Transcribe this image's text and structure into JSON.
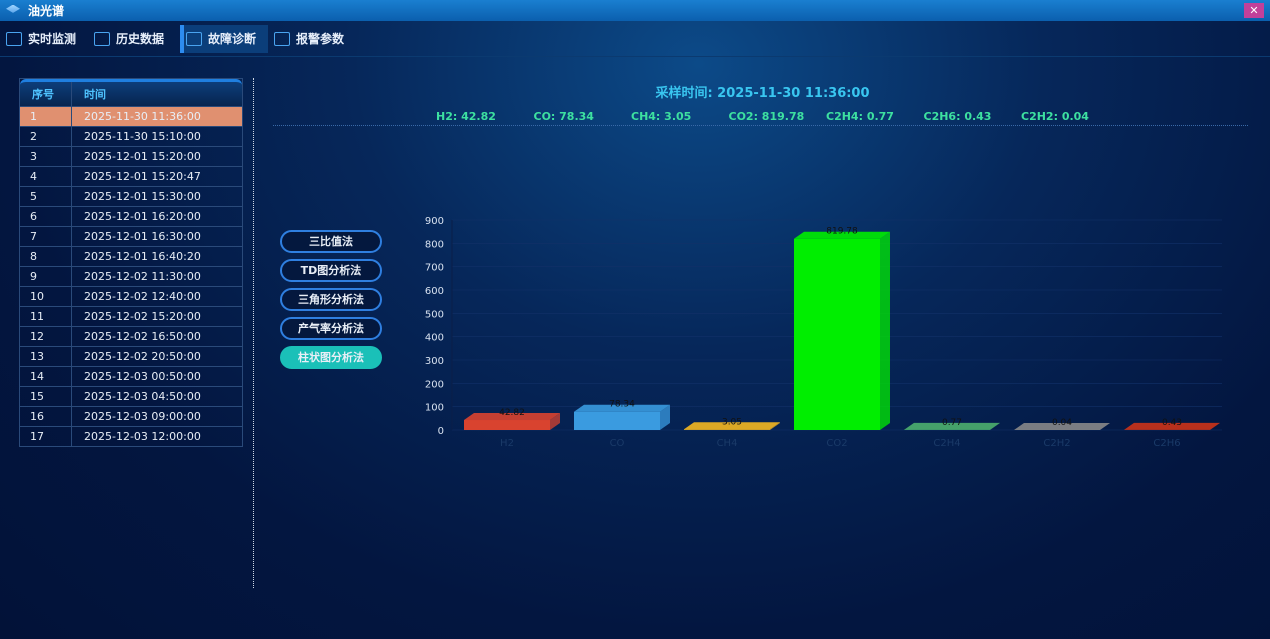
{
  "window": {
    "title": "油光谱",
    "close_icon": "close-icon"
  },
  "nav": [
    {
      "label": "实时监测",
      "icon": "monitor-icon"
    },
    {
      "label": "历史数据",
      "icon": "chart-icon"
    },
    {
      "label": "故障诊断",
      "icon": "diagnosis-icon",
      "active": true
    },
    {
      "label": "报警参数",
      "icon": "user-settings-icon"
    }
  ],
  "table": {
    "headers": [
      "序号",
      "时间"
    ],
    "selected": 0,
    "rows": [
      [
        "1",
        "2025-11-30 11:36:00"
      ],
      [
        "2",
        "2025-11-30 15:10:00"
      ],
      [
        "3",
        "2025-12-01 15:20:00"
      ],
      [
        "4",
        "2025-12-01 15:20:47"
      ],
      [
        "5",
        "2025-12-01 15:30:00"
      ],
      [
        "6",
        "2025-12-01 16:20:00"
      ],
      [
        "7",
        "2025-12-01 16:30:00"
      ],
      [
        "8",
        "2025-12-01 16:40:20"
      ],
      [
        "9",
        "2025-12-02 11:30:00"
      ],
      [
        "10",
        "2025-12-02 12:40:00"
      ],
      [
        "11",
        "2025-12-02 15:20:00"
      ],
      [
        "12",
        "2025-12-02 16:50:00"
      ],
      [
        "13",
        "2025-12-02 20:50:00"
      ],
      [
        "14",
        "2025-12-03 00:50:00"
      ],
      [
        "15",
        "2025-12-03 04:50:00"
      ],
      [
        "16",
        "2025-12-03 09:00:00"
      ],
      [
        "17",
        "2025-12-03 12:00:00"
      ]
    ]
  },
  "sample": {
    "label": "采样时间: 2025-11-30 11:36:00",
    "gases": [
      "H2: 42.82",
      "CO: 78.34",
      "CH4: 3.05",
      "CO2: 819.78",
      "C2H4: 0.77",
      "C2H6: 0.43",
      "C2H2: 0.04"
    ]
  },
  "methods": [
    {
      "label": "三比值法"
    },
    {
      "label": "TD图分析法"
    },
    {
      "label": "三角形分析法"
    },
    {
      "label": "产气率分析法"
    },
    {
      "label": "柱状图分析法",
      "active": true
    }
  ],
  "chart_data": {
    "type": "bar",
    "categories": [
      "H2",
      "CO",
      "CH4",
      "CO2",
      "C2H4",
      "C2H2",
      "C2H6"
    ],
    "values": [
      42.82,
      78.34,
      3.05,
      819.78,
      0.77,
      0.04,
      0.43
    ],
    "colors": [
      "#d9432f",
      "#3a9be0",
      "#f5b820",
      "#00ee00",
      "#4caf6e",
      "#888888",
      "#cc3318"
    ],
    "ylim": [
      0,
      900
    ],
    "yticks": [
      0,
      100,
      200,
      300,
      400,
      500,
      600,
      700,
      800,
      900
    ],
    "grid": true,
    "style": "3d"
  }
}
